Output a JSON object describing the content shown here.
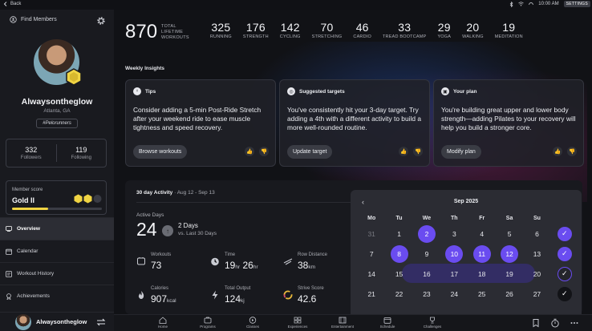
{
  "system_bar": {
    "back_label": "Back",
    "time": "10:00 AM",
    "settings_label": "SETTINGS"
  },
  "sidebar": {
    "find_members_label": "Find Members",
    "username": "Alwaysontheglow",
    "location": "Atlanta, GA",
    "tag": "#Pelorunners",
    "followers_count": "332",
    "followers_label": "Followers",
    "following_count": "119",
    "following_label": "Following",
    "member_score_label": "Member score",
    "member_score_value": "Gold II",
    "member_score_progress": 0.4,
    "nav": [
      {
        "label": "Overview",
        "active": true,
        "icon": "overview-icon"
      },
      {
        "label": "Calendar",
        "active": false,
        "icon": "calendar-icon"
      },
      {
        "label": "Workout History",
        "active": false,
        "icon": "workout-history-icon"
      },
      {
        "label": "Achievements",
        "active": false,
        "icon": "achievements-icon"
      }
    ],
    "footer_name": "Alwaysontheglow"
  },
  "stats": {
    "total": {
      "value": "870",
      "label_line1": "TOTAL",
      "label_line2": "LIFETIME",
      "label_line3": "WORKOUTS"
    },
    "items": [
      {
        "value": "325",
        "label": "RUNNING"
      },
      {
        "value": "176",
        "label": "STRENGTH"
      },
      {
        "value": "142",
        "label": "CYCLING"
      },
      {
        "value": "70",
        "label": "STRETCHING"
      },
      {
        "value": "46",
        "label": "CARDIO"
      },
      {
        "value": "33",
        "label": "TREAD BOOTCAMP"
      },
      {
        "value": "29",
        "label": "YOGA"
      },
      {
        "value": "20",
        "label": "WALKING"
      },
      {
        "value": "19",
        "label": "MEDITATION"
      }
    ]
  },
  "weekly_insights": {
    "title": "Weekly Insights",
    "cards": [
      {
        "title": "Tips",
        "icon_glyph": "♀",
        "body": "Consider adding a 5-min Post-Ride Stretch after your weekend ride to ease muscle tightness and speed recovery.",
        "button": "Browse workouts"
      },
      {
        "title": "Suggested targets",
        "icon_glyph": "◎",
        "body": "You've consistently hit your 3-day target. Try adding a 4th with a different activity to build a more well-rounded routine.",
        "button": "Update target"
      },
      {
        "title": "Your plan",
        "icon_glyph": "▣",
        "body": "You're building great upper and lower body strength—adding Pilates to your recovery will help you build a stronger core.",
        "button": "Modify plan"
      }
    ]
  },
  "activity": {
    "title": "30 day Activity",
    "range": "· Aug 12 - Sep 13",
    "active_days_label": "Active Days",
    "active_days_value": "24",
    "delta_value": "2 Days",
    "delta_sub": "vs. Last 30 Days",
    "metrics": [
      {
        "label": "Workouts",
        "value": "73",
        "unit": "",
        "icon": "workouts-icon"
      },
      {
        "label": "Time",
        "value": "19",
        "unit": "hr",
        "value2": "26",
        "unit2": "hr",
        "icon": "time-icon"
      },
      {
        "label": "Row Distance",
        "value": "38",
        "unit": "km",
        "icon": "row-distance-icon"
      },
      {
        "label": "Calories",
        "value": "907",
        "unit": "kcal",
        "icon": "calories-icon"
      },
      {
        "label": "Total Output",
        "value": "124",
        "unit": "kj",
        "icon": "output-icon"
      },
      {
        "label": "Strive Score",
        "value": "42.6",
        "unit": "",
        "icon": "strive-score-icon"
      }
    ]
  },
  "calendar": {
    "month": "Sep 2025",
    "weekdays": [
      "Mo",
      "Tu",
      "We",
      "Th",
      "Fr",
      "Sa",
      "Su"
    ],
    "weeks": [
      {
        "days": [
          {
            "d": "31",
            "muted": true
          },
          {
            "d": "1"
          },
          {
            "d": "2",
            "on": true
          },
          {
            "d": "3"
          },
          {
            "d": "4"
          },
          {
            "d": "5"
          },
          {
            "d": "6"
          }
        ],
        "check": "full"
      },
      {
        "days": [
          {
            "d": "7"
          },
          {
            "d": "8",
            "on": true
          },
          {
            "d": "9"
          },
          {
            "d": "10",
            "on": true
          },
          {
            "d": "11",
            "on": true
          },
          {
            "d": "12",
            "on": true
          },
          {
            "d": "13"
          }
        ],
        "check": "full"
      },
      {
        "days": [
          {
            "d": "14"
          },
          {
            "d": "15"
          },
          {
            "d": "16"
          },
          {
            "d": "17"
          },
          {
            "d": "18"
          },
          {
            "d": "19"
          },
          {
            "d": "20"
          }
        ],
        "check": "ring"
      },
      {
        "days": [
          {
            "d": "21"
          },
          {
            "d": "22"
          },
          {
            "d": "23"
          },
          {
            "d": "24"
          },
          {
            "d": "25"
          },
          {
            "d": "26"
          },
          {
            "d": "27"
          }
        ],
        "check": "dark"
      }
    ]
  },
  "bottom_nav": [
    {
      "label": "Home",
      "icon": "home-icon"
    },
    {
      "label": "Programs",
      "icon": "programs-icon"
    },
    {
      "label": "Classes",
      "icon": "classes-icon"
    },
    {
      "label": "Experiences",
      "icon": "experiences-icon"
    },
    {
      "label": "Entertainment",
      "icon": "entertainment-icon"
    },
    {
      "label": "Schedule",
      "icon": "schedule-icon"
    },
    {
      "label": "Challenges",
      "icon": "challenges-icon"
    }
  ],
  "colors": {
    "accent": "#6a4cf0",
    "gold": "#f0d443",
    "background": "#111216",
    "sidebar": "#191a1f"
  }
}
